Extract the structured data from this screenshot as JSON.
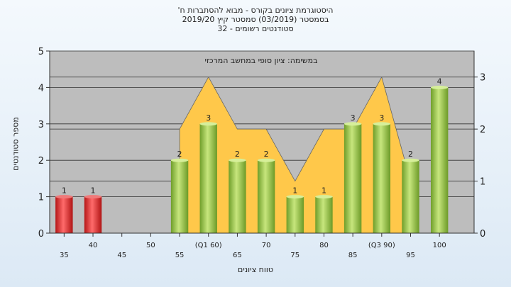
{
  "chart_data": {
    "type": "bar",
    "title_lines": [
      "היסטוגרמת ציונים בקורס - מבוא להסתברות ח'",
      "בסמסטר (03/2019) סמסטר קיץ 2019/20",
      "סטודנטים רשומים - 32"
    ],
    "annotation": "במשימה: ציון סופי במחשב המרכזי",
    "xlabel": "טווח ציונים",
    "ylabel": "מספר סטודנטים",
    "categories": [
      "35",
      "40",
      "45",
      "50",
      "55",
      "(Q1 60)",
      "65",
      "70",
      "75",
      "80",
      "85",
      "(Q3 90)",
      "95",
      "100"
    ],
    "values": [
      1,
      1,
      0,
      0,
      2,
      3,
      2,
      2,
      1,
      1,
      3,
      3,
      2,
      4
    ],
    "bar_colors": [
      "red",
      "red",
      "",
      "",
      "green",
      "green",
      "green",
      "green",
      "green",
      "green",
      "green",
      "green",
      "green",
      "green"
    ],
    "ylim": [
      0,
      5
    ],
    "yticks": [
      "0",
      "1",
      "2",
      "3",
      "4",
      "5"
    ],
    "y2lim": [
      0,
      3.5
    ],
    "y2ticks": [
      "0",
      "1",
      "2",
      "3"
    ],
    "area_series": [
      {
        "x": "55",
        "y": 2
      },
      {
        "x": "(Q1 60)",
        "y": 3
      },
      {
        "x": "65",
        "y": 2
      },
      {
        "x": "70",
        "y": 2
      },
      {
        "x": "75",
        "y": 1
      },
      {
        "x": "80",
        "y": 2
      },
      {
        "x": "85",
        "y": 2
      },
      {
        "x": "(Q3 90)",
        "y": 3
      },
      {
        "x": "95",
        "y": 1
      }
    ],
    "grid": true,
    "colors": {
      "plot_bg": "#bdbdbd",
      "area": "#ffc84a",
      "bar_red": "#e32626",
      "bar_green": "#8dc63f"
    }
  }
}
